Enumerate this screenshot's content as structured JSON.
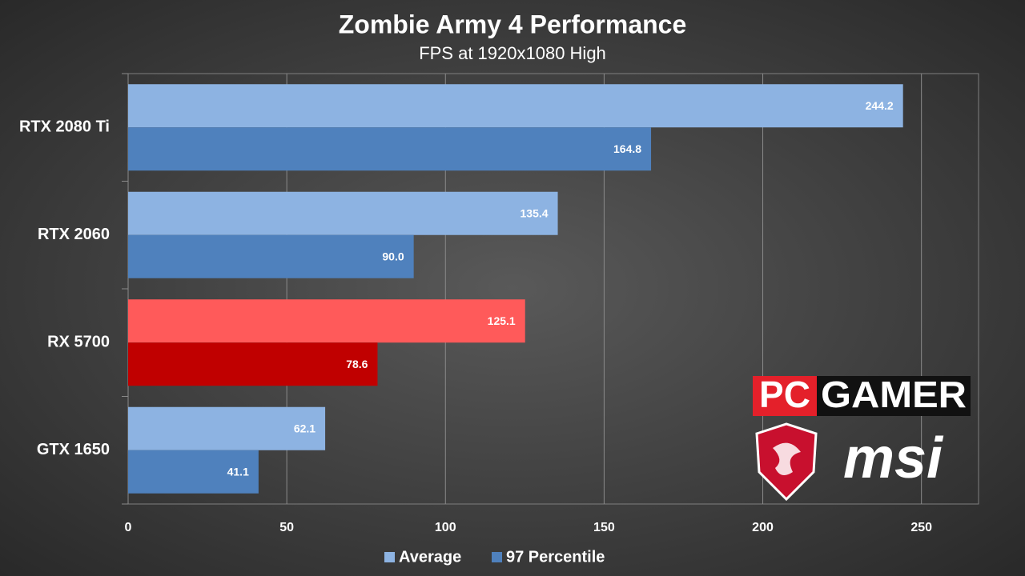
{
  "chart_data": {
    "type": "hbar",
    "title": "Zombie Army 4 Performance",
    "subtitle": "FPS at 1920x1080 High",
    "categories": [
      "RTX 2080 Ti",
      "RTX 2060",
      "RX 5700",
      "GTX 1650"
    ],
    "series": [
      {
        "name": "Average",
        "color": "#8db3e2",
        "colors": [
          "#8db3e2",
          "#8db3e2",
          "#ff5a5a",
          "#8db3e2"
        ],
        "values": [
          244.2,
          135.4,
          125.1,
          62.1
        ],
        "value_labels": [
          "244.2",
          "135.4",
          "125.1",
          "62.1"
        ]
      },
      {
        "name": "97 Percentile",
        "color": "#4f81bd",
        "colors": [
          "#4f81bd",
          "#4f81bd",
          "#c00000",
          "#4f81bd"
        ],
        "values": [
          164.8,
          90.0,
          78.6,
          41.1
        ],
        "value_labels": [
          "164.8",
          "90.0",
          "78.6",
          "41.1"
        ]
      }
    ],
    "xlim": [
      0,
      268
    ],
    "xticks": [
      0,
      50,
      100,
      150,
      200,
      250
    ],
    "grid": true,
    "legend": "bottom"
  },
  "branding": {
    "pc": "PC",
    "gamer": "GAMER",
    "msi": "msi"
  }
}
